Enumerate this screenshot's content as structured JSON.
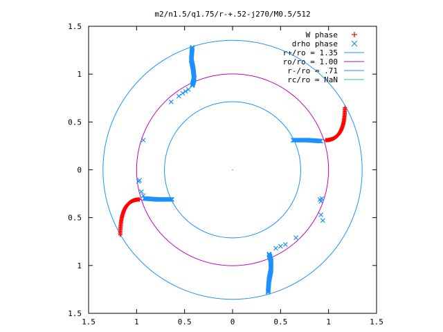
{
  "chart_data": {
    "type": "scatter",
    "title": "m2/n1.5/q1.75/r-+.52-j270/M0.5/512",
    "xlabel": "",
    "ylabel": "",
    "xlim": [
      -1.5,
      1.5
    ],
    "ylim": [
      -1.5,
      1.5
    ],
    "x_ticks": [
      -1.5,
      -1,
      -0.5,
      0,
      0.5,
      1,
      1.5
    ],
    "y_ticks": [
      -1.5,
      -1,
      -0.5,
      0,
      0.5,
      1,
      1.5
    ],
    "x_tick_labels": [
      "1.5",
      "1",
      "0.5",
      "0",
      "0.5",
      "1",
      "1.5"
    ],
    "y_tick_labels": [
      "1.5",
      "1",
      "0.5",
      "0",
      "0.5",
      "1",
      "1.5"
    ],
    "grid": false,
    "legend_position": "top-right",
    "legend": [
      {
        "label": "W phase",
        "marker": "plus",
        "color": "#ff0000"
      },
      {
        "label": "drho phase",
        "marker": "cross",
        "color": "#1e90ff"
      },
      {
        "label": "r+/ro = 1.35",
        "line": true,
        "color": "#1e90ff"
      },
      {
        "label": "ro/ro = 1.00",
        "line": true,
        "color": "#c000c0"
      },
      {
        "label": "r-/ro = .71",
        "line": true,
        "color": "#1e90ff"
      },
      {
        "label": "rc/ro = NaN",
        "line": true,
        "color": "#20c0c0"
      }
    ],
    "circles": [
      {
        "name": "r+/ro = 1.35",
        "r": 1.35,
        "color": "#1e90ff"
      },
      {
        "name": "ro/ro = 1.00",
        "r": 1.0,
        "color": "#c000c0"
      },
      {
        "name": "r-/ro = .71",
        "r": 0.71,
        "color": "#1e90ff"
      }
    ],
    "w_phase_arms": [
      {
        "from": [
          0.97,
          0.31
        ],
        "to": [
          1.17,
          0.65
        ]
      },
      {
        "from": [
          -0.97,
          -0.31
        ],
        "to": [
          -1.17,
          -0.68
        ]
      }
    ],
    "drho_arms": [
      {
        "points": [
          [
            0.63,
            0.31
          ],
          [
            0.78,
            0.31
          ],
          [
            0.92,
            0.3
          ]
        ]
      },
      {
        "points": [
          [
            -0.63,
            -0.31
          ],
          [
            -0.78,
            -0.31
          ],
          [
            -0.92,
            -0.3
          ]
        ]
      },
      {
        "points": [
          [
            -0.42,
            0.88
          ],
          [
            -0.4,
            0.95
          ],
          [
            -0.41,
            1.05
          ],
          [
            -0.43,
            1.15
          ],
          [
            -0.42,
            1.28
          ]
        ]
      },
      {
        "points": [
          [
            0.38,
            -0.88
          ],
          [
            0.4,
            -0.95
          ],
          [
            0.4,
            -1.05
          ],
          [
            0.38,
            -1.15
          ],
          [
            0.37,
            -1.28
          ]
        ]
      }
    ],
    "drho_scatter": [
      [
        -0.46,
        0.84
      ],
      [
        -0.49,
        0.82
      ],
      [
        -0.52,
        0.8
      ],
      [
        -0.56,
        0.77
      ],
      [
        -0.64,
        0.71
      ],
      [
        -0.93,
        0.31
      ],
      [
        -0.97,
        -0.11
      ],
      [
        -0.98,
        -0.12
      ],
      [
        -0.95,
        -0.23
      ],
      [
        -0.93,
        -0.27
      ],
      [
        0.92,
        -0.47
      ],
      [
        0.94,
        -0.53
      ],
      [
        0.91,
        -0.31
      ],
      [
        0.92,
        -0.33
      ],
      [
        0.93,
        -0.3
      ],
      [
        0.45,
        -0.82
      ],
      [
        0.5,
        -0.8
      ],
      [
        0.55,
        -0.78
      ],
      [
        0.66,
        -0.71
      ]
    ]
  }
}
